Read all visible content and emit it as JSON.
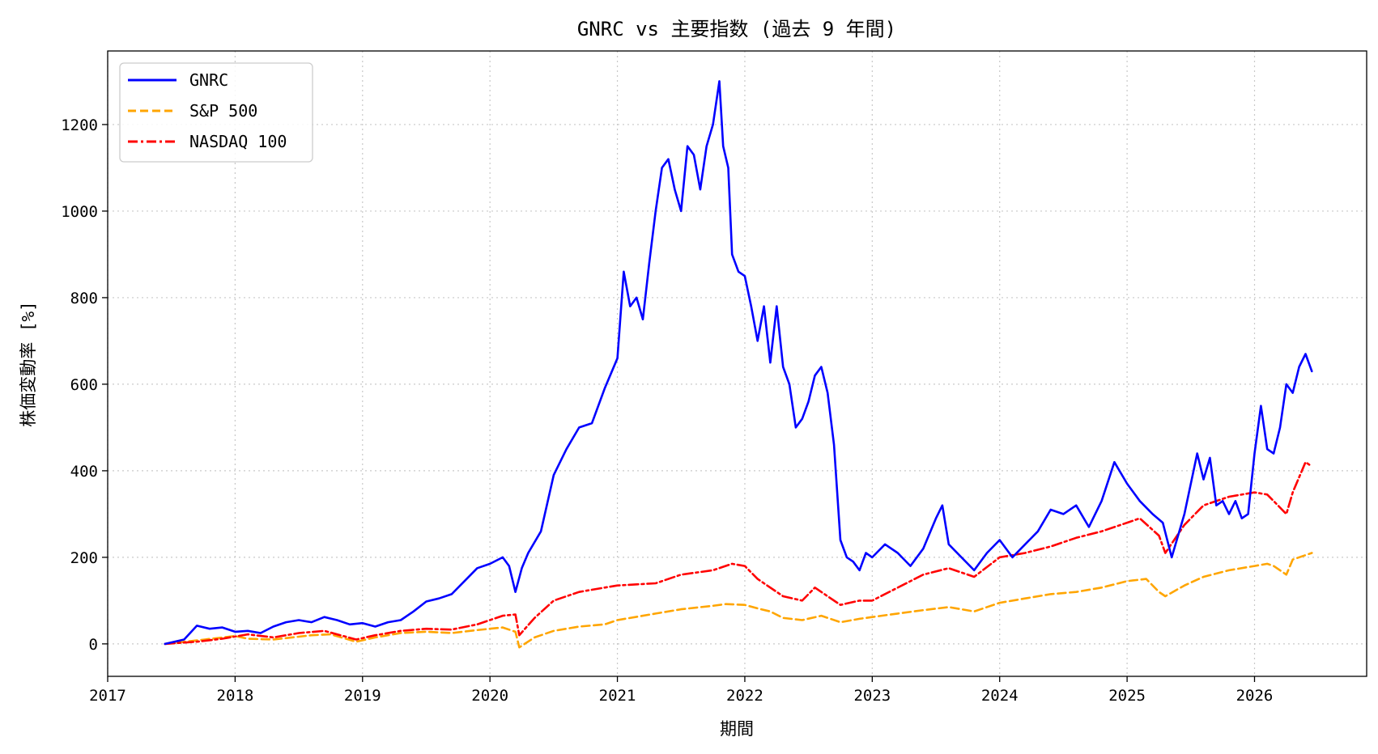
{
  "chart_data": {
    "type": "line",
    "title": "GNRC vs 主要指数 (過去 9 年間)",
    "xlabel": "期間",
    "ylabel": "株価変動率 [%]",
    "xlim": [
      2017.0,
      2026.88
    ],
    "ylim": [
      -75,
      1370
    ],
    "xticks": [
      2017,
      2018,
      2019,
      2020,
      2021,
      2022,
      2023,
      2024,
      2025,
      2026
    ],
    "xtick_labels": [
      "2017",
      "2018",
      "2019",
      "2020",
      "2021",
      "2022",
      "2023",
      "2024",
      "2025",
      "2026"
    ],
    "yticks": [
      0,
      200,
      400,
      600,
      800,
      1000,
      1200
    ],
    "ytick_labels": [
      "0",
      "200",
      "400",
      "600",
      "800",
      "1000",
      "1200"
    ],
    "grid": true,
    "legend_position": "top-left",
    "series": [
      {
        "name": "GNRC",
        "color": "#0000ff",
        "style": "solid",
        "x": [
          2017.45,
          2017.6,
          2017.7,
          2017.8,
          2017.9,
          2018.0,
          2018.1,
          2018.2,
          2018.3,
          2018.4,
          2018.5,
          2018.6,
          2018.7,
          2018.8,
          2018.9,
          2019.0,
          2019.1,
          2019.2,
          2019.3,
          2019.4,
          2019.5,
          2019.6,
          2019.7,
          2019.8,
          2019.9,
          2020.0,
          2020.1,
          2020.15,
          2020.2,
          2020.25,
          2020.3,
          2020.4,
          2020.5,
          2020.6,
          2020.7,
          2020.8,
          2020.9,
          2021.0,
          2021.05,
          2021.1,
          2021.15,
          2021.2,
          2021.25,
          2021.3,
          2021.35,
          2021.4,
          2021.45,
          2021.5,
          2021.55,
          2021.6,
          2021.65,
          2021.7,
          2021.75,
          2021.8,
          2021.83,
          2021.87,
          2021.9,
          2021.95,
          2022.0,
          2022.05,
          2022.1,
          2022.15,
          2022.2,
          2022.25,
          2022.3,
          2022.35,
          2022.4,
          2022.45,
          2022.5,
          2022.55,
          2022.6,
          2022.65,
          2022.7,
          2022.75,
          2022.8,
          2022.85,
          2022.9,
          2022.95,
          2023.0,
          2023.1,
          2023.2,
          2023.3,
          2023.4,
          2023.5,
          2023.55,
          2023.6,
          2023.7,
          2023.8,
          2023.9,
          2024.0,
          2024.1,
          2024.2,
          2024.3,
          2024.4,
          2024.5,
          2024.6,
          2024.7,
          2024.8,
          2024.9,
          2025.0,
          2025.1,
          2025.2,
          2025.28,
          2025.35,
          2025.45,
          2025.55,
          2025.6,
          2025.65,
          2025.7,
          2025.75,
          2025.8,
          2025.85,
          2025.9,
          2025.95,
          2026.0,
          2026.05,
          2026.1,
          2026.15,
          2026.2,
          2026.25,
          2026.3,
          2026.35,
          2026.4,
          2026.45
        ],
        "values": [
          0,
          10,
          42,
          35,
          38,
          28,
          30,
          25,
          40,
          50,
          55,
          50,
          62,
          55,
          45,
          48,
          40,
          50,
          55,
          75,
          98,
          105,
          115,
          145,
          175,
          185,
          200,
          180,
          120,
          175,
          210,
          260,
          390,
          450,
          500,
          510,
          590,
          660,
          860,
          780,
          800,
          750,
          880,
          1000,
          1100,
          1120,
          1050,
          1000,
          1150,
          1130,
          1050,
          1150,
          1200,
          1300,
          1150,
          1100,
          900,
          860,
          850,
          780,
          700,
          780,
          650,
          780,
          640,
          600,
          500,
          520,
          560,
          620,
          640,
          580,
          460,
          240,
          200,
          190,
          170,
          210,
          200,
          230,
          210,
          180,
          220,
          290,
          320,
          230,
          200,
          170,
          210,
          240,
          200,
          230,
          260,
          310,
          300,
          320,
          270,
          330,
          420,
          370,
          330,
          300,
          280,
          200,
          300,
          440,
          380,
          430,
          320,
          330,
          300,
          330,
          290,
          300,
          440,
          550,
          450,
          440,
          500,
          600,
          580,
          640,
          670,
          630
        ]
      },
      {
        "name": "S&P 500",
        "color": "#ffa500",
        "style": "dashed",
        "x": [
          2017.45,
          2017.7,
          2018.0,
          2018.1,
          2018.3,
          2018.6,
          2018.75,
          2018.95,
          2019.1,
          2019.3,
          2019.5,
          2019.7,
          2019.9,
          2020.1,
          2020.2,
          2020.23,
          2020.35,
          2020.5,
          2020.7,
          2020.9,
          2021.0,
          2021.3,
          2021.5,
          2021.75,
          2021.85,
          2022.0,
          2022.1,
          2022.2,
          2022.3,
          2022.45,
          2022.6,
          2022.75,
          2022.9,
          2023.0,
          2023.2,
          2023.4,
          2023.6,
          2023.8,
          2024.0,
          2024.2,
          2024.4,
          2024.6,
          2024.8,
          2025.0,
          2025.15,
          2025.25,
          2025.3,
          2025.45,
          2025.6,
          2025.8,
          2026.0,
          2026.1,
          2026.15,
          2026.25,
          2026.3,
          2026.45
        ],
        "values": [
          0,
          8,
          18,
          12,
          10,
          20,
          22,
          5,
          15,
          25,
          28,
          25,
          32,
          38,
          28,
          -8,
          15,
          30,
          40,
          45,
          55,
          70,
          80,
          88,
          92,
          90,
          82,
          75,
          60,
          55,
          65,
          50,
          58,
          62,
          70,
          78,
          85,
          75,
          95,
          105,
          115,
          120,
          130,
          145,
          150,
          120,
          110,
          135,
          155,
          170,
          180,
          185,
          180,
          160,
          195,
          210
        ]
      },
      {
        "name": "NASDAQ 100",
        "color": "#ff0000",
        "style": "dashdot",
        "x": [
          2017.45,
          2017.7,
          2017.9,
          2018.1,
          2018.3,
          2018.5,
          2018.7,
          2018.95,
          2019.1,
          2019.3,
          2019.5,
          2019.7,
          2019.9,
          2020.1,
          2020.2,
          2020.23,
          2020.35,
          2020.5,
          2020.7,
          2020.9,
          2021.0,
          2021.3,
          2021.5,
          2021.75,
          2021.9,
          2022.0,
          2022.1,
          2022.2,
          2022.3,
          2022.45,
          2022.55,
          2022.6,
          2022.75,
          2022.9,
          2023.0,
          2023.2,
          2023.4,
          2023.6,
          2023.8,
          2024.0,
          2024.2,
          2024.4,
          2024.6,
          2024.8,
          2025.0,
          2025.1,
          2025.25,
          2025.3,
          2025.45,
          2025.6,
          2025.8,
          2026.0,
          2026.1,
          2026.15,
          2026.25,
          2026.3,
          2026.4,
          2026.45
        ],
        "values": [
          0,
          5,
          12,
          22,
          15,
          25,
          30,
          10,
          20,
          30,
          35,
          33,
          45,
          65,
          68,
          20,
          60,
          100,
          120,
          130,
          135,
          140,
          160,
          170,
          185,
          180,
          150,
          130,
          110,
          100,
          130,
          120,
          90,
          100,
          100,
          130,
          160,
          175,
          155,
          200,
          210,
          225,
          245,
          260,
          280,
          290,
          250,
          210,
          275,
          320,
          340,
          350,
          345,
          330,
          300,
          350,
          420,
          410
        ]
      }
    ]
  }
}
